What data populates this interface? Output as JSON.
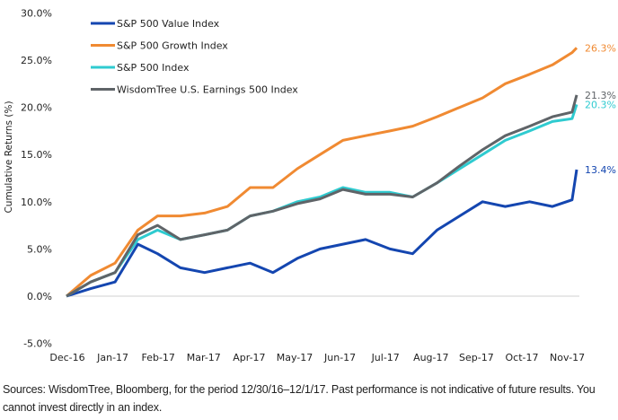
{
  "chart_data": {
    "type": "line",
    "title": "",
    "xlabel": "",
    "ylabel": "Cumulative Returns (%)",
    "ylim": [
      -5,
      30
    ],
    "yticks": [
      "-5.0%",
      "0.0%",
      "5.0%",
      "10.0%",
      "15.0%",
      "20.0%",
      "25.0%",
      "30.0%"
    ],
    "xtick_labels": [
      "Dec-16",
      "Jan-17",
      "Feb-17",
      "Mar-17",
      "Apr-17",
      "May-17",
      "Jun-17",
      "Jul-17",
      "Aug-17",
      "Sep-17",
      "Oct-17",
      "Nov-17"
    ],
    "grid": false,
    "legend": "top-left",
    "x": [
      "2016-12-30",
      "2017-01-15",
      "2017-01-31",
      "2017-02-15",
      "2017-02-28",
      "2017-03-15",
      "2017-03-31",
      "2017-04-15",
      "2017-04-30",
      "2017-05-15",
      "2017-05-31",
      "2017-06-15",
      "2017-06-30",
      "2017-07-15",
      "2017-07-31",
      "2017-08-15",
      "2017-08-31",
      "2017-09-15",
      "2017-09-30",
      "2017-10-15",
      "2017-10-31",
      "2017-11-15",
      "2017-11-28",
      "2017-12-01"
    ],
    "series": [
      {
        "name": "S&P 500 Value Index",
        "color": "#1446B0",
        "end_label": "13.4%",
        "values": [
          0,
          0.8,
          1.5,
          5.5,
          4.5,
          3,
          2.5,
          3,
          3.5,
          2.5,
          4,
          5,
          5.5,
          6,
          5,
          4.5,
          7,
          8.5,
          10,
          9.5,
          10,
          9.5,
          10.2,
          13.4
        ]
      },
      {
        "name": "S&P 500 Growth Index",
        "color": "#F08A32",
        "end_label": "26.3%",
        "values": [
          0,
          2.2,
          3.5,
          7,
          8.5,
          8.5,
          8.8,
          9.5,
          11.5,
          11.5,
          13.5,
          15,
          16.5,
          17,
          17.5,
          18,
          19,
          20,
          21,
          22.5,
          23.5,
          24.5,
          25.8,
          26.3
        ]
      },
      {
        "name": "S&P 500 Index",
        "color": "#2FCBD0",
        "end_label": "20.3%",
        "values": [
          0,
          1.5,
          2.5,
          6,
          7,
          6,
          6.5,
          7,
          8.5,
          9,
          10,
          10.5,
          11.5,
          11,
          11,
          10.5,
          12,
          13.5,
          15,
          16.5,
          17.5,
          18.5,
          18.8,
          20.3
        ]
      },
      {
        "name": "WisdomTree U.S. Earnings 500 Index",
        "color": "#5F6468",
        "end_label": "21.3%",
        "values": [
          0,
          1.5,
          2.5,
          6.5,
          7.5,
          6,
          6.5,
          7,
          8.5,
          9,
          9.8,
          10.3,
          11.3,
          10.8,
          10.8,
          10.5,
          12,
          13.8,
          15.5,
          17,
          18,
          19,
          19.5,
          21.3
        ]
      }
    ]
  },
  "footnote": "Sources: WisdomTree, Bloomberg, for the period 12/30/16–12/1/17. Past performance is not indicative of future results. You cannot invest directly in an index."
}
